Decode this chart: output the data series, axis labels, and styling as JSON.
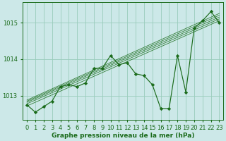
{
  "title": "Graphe pression niveau de la mer (hPa)",
  "bg_color": "#cce8e8",
  "grid_color": "#99ccbb",
  "line_color": "#1a6b1a",
  "marker_color": "#1a6b1a",
  "x_values": [
    0,
    1,
    2,
    3,
    4,
    5,
    6,
    7,
    8,
    9,
    10,
    11,
    12,
    13,
    14,
    15,
    16,
    17,
    18,
    19,
    20,
    21,
    22,
    23
  ],
  "y_main": [
    1012.75,
    1012.55,
    1012.7,
    1012.85,
    1013.25,
    1013.3,
    1013.25,
    1013.35,
    1013.75,
    1013.75,
    1014.1,
    1013.85,
    1013.9,
    1013.6,
    1013.55,
    1013.3,
    1012.65,
    1012.65,
    1014.1,
    1013.1,
    1014.85,
    1015.05,
    1015.3,
    1015.0
  ],
  "trend_lines": [
    [
      0,
      1012.72,
      23,
      1015.05
    ],
    [
      0,
      1012.78,
      23,
      1015.1
    ],
    [
      0,
      1012.82,
      23,
      1015.15
    ],
    [
      0,
      1012.85,
      23,
      1015.2
    ],
    [
      0,
      1012.88,
      23,
      1015.25
    ]
  ],
  "ylim": [
    1012.35,
    1015.55
  ],
  "yticks": [
    1013,
    1014,
    1015
  ],
  "tick_fontsize": 6,
  "title_fontsize": 6.5
}
